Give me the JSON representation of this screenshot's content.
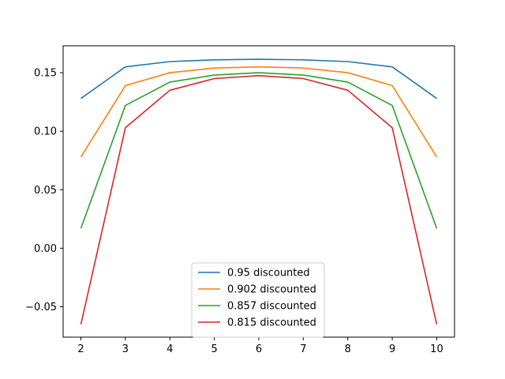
{
  "chart_data": {
    "type": "line",
    "title": "",
    "xlabel": "",
    "ylabel": "",
    "x": [
      2,
      3,
      4,
      5,
      6,
      7,
      8,
      9,
      10
    ],
    "xlim": [
      1.6,
      10.4
    ],
    "ylim": [
      -0.076,
      0.173
    ],
    "xticks": [
      2,
      3,
      4,
      5,
      6,
      7,
      8,
      9,
      10
    ],
    "yticks": [
      -0.05,
      0.0,
      0.05,
      0.1,
      0.15
    ],
    "ytick_labels": [
      "−0.05",
      "0.00",
      "0.05",
      "0.10",
      "0.15"
    ],
    "grid": false,
    "legend": {
      "placement": "lower-center"
    },
    "series": [
      {
        "name": "0.95 discounted",
        "color": "#1f77b4",
        "values": [
          0.128,
          0.155,
          0.1595,
          0.161,
          0.1615,
          0.161,
          0.1595,
          0.155,
          0.128
        ]
      },
      {
        "name": "0.902 discounted",
        "color": "#ff7f0e",
        "values": [
          0.078,
          0.139,
          0.15,
          0.154,
          0.155,
          0.154,
          0.15,
          0.139,
          0.078
        ]
      },
      {
        "name": "0.857 discounted",
        "color": "#2ca02c",
        "values": [
          0.017,
          0.122,
          0.142,
          0.148,
          0.15,
          0.148,
          0.142,
          0.122,
          0.017
        ]
      },
      {
        "name": "0.815 discounted",
        "color": "#d62728",
        "values": [
          -0.065,
          0.103,
          0.135,
          0.145,
          0.1475,
          0.145,
          0.135,
          0.103,
          -0.065
        ]
      }
    ]
  }
}
